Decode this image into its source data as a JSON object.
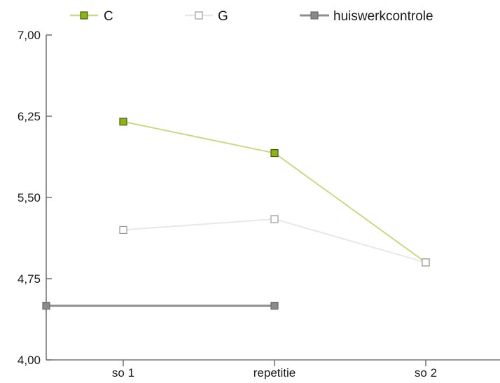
{
  "chart_data": {
    "type": "line",
    "categories": [
      "so 1",
      "repetitie",
      "so 2"
    ],
    "ylim": [
      4.0,
      7.0
    ],
    "yticks": [
      {
        "value": 4.0,
        "label": "4,00"
      },
      {
        "value": 4.75,
        "label": "4,75"
      },
      {
        "value": 5.5,
        "label": "5,50"
      },
      {
        "value": 6.25,
        "label": "6,25"
      },
      {
        "value": 7.0,
        "label": "7,00"
      }
    ],
    "legend_position": "top",
    "series": [
      {
        "name": "C",
        "values": [
          6.2,
          5.91,
          4.9
        ],
        "color": "#c8d98c",
        "marker_fill": "#8db31b",
        "marker_edge": "#4a5a10"
      },
      {
        "name": "G",
        "values": [
          5.2,
          5.3,
          4.9
        ],
        "color": "#e8e8e8",
        "marker_fill": "#ffffff",
        "marker_edge": "#9a9a9a"
      },
      {
        "name": "huiswerkcontrole",
        "values": [
          4.5,
          4.5,
          null
        ],
        "color": "#8f8f8f",
        "marker_fill": "#8a8a8a",
        "marker_edge": "#6a6a6a",
        "first_point_on_axis": true
      }
    ]
  }
}
